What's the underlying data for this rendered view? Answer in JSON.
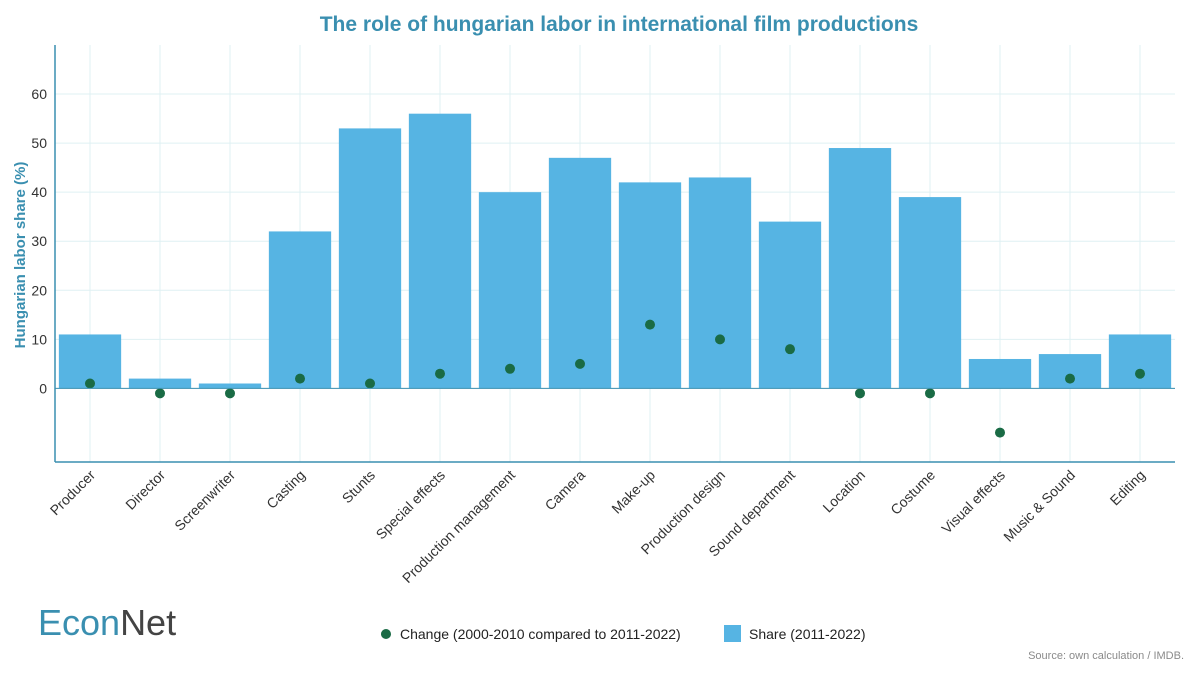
{
  "chart_data": {
    "type": "bar",
    "title": "The role of hungarian labor in international film productions",
    "ylabel": "Hungarian labor share (%)",
    "xlabel": "",
    "ylim": [
      -15,
      70
    ],
    "yticks": [
      0,
      10,
      20,
      30,
      40,
      50,
      60
    ],
    "grid": true,
    "legend_position": "bottom-center",
    "categories": [
      "Producer",
      "Director",
      "Screenwriter",
      "Casting",
      "Stunts",
      "Special effects",
      "Production management",
      "Camera",
      "Make-up",
      "Production design",
      "Sound department",
      "Location",
      "Costume",
      "Visual effects",
      "Music & Sound",
      "Editing"
    ],
    "series": [
      {
        "name": "Share (2011-2022)",
        "kind": "bar",
        "color": "#56b4e3",
        "values": [
          11,
          2,
          1,
          32,
          53,
          56,
          40,
          47,
          42,
          43,
          34,
          49,
          39,
          6,
          7,
          11
        ]
      },
      {
        "name": "Change (2000-2010 compared to 2011-2022)",
        "kind": "point",
        "color": "#1a6b45",
        "values": [
          1,
          -1,
          -1,
          2,
          1,
          3,
          4,
          5,
          13,
          10,
          8,
          -1,
          -1,
          -9,
          2,
          3
        ]
      }
    ]
  },
  "colors": {
    "title": "#3a8fb0",
    "axis": "#3a8fb0",
    "grid": "#dff0f3",
    "logo_econ": "#3a8fb0",
    "logo_net": "#444444"
  },
  "logo": {
    "part1": "Econ",
    "part2": "Net"
  },
  "source": "Source: own calculation / IMDB."
}
